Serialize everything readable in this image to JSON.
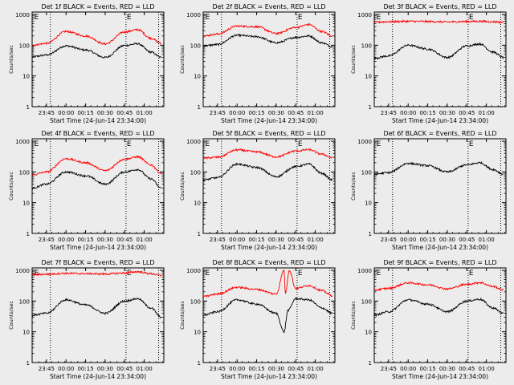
{
  "figure": {
    "xlabel": "Start Time (24-Jun-14 23:34:00)",
    "ylabel": "Counts/sec",
    "xtick_labels": [
      "23:45",
      "00:00",
      "00:15",
      "00:30",
      "00:45",
      "01:00"
    ],
    "ytick_labels": [
      "1",
      "10",
      "100",
      "1000"
    ],
    "colors": {
      "events": "#000000",
      "lld": "#ff0000"
    }
  },
  "chart_data": [
    {
      "type": "line",
      "title": "Det 1f BLACK = Events, RED = LLD",
      "xlim": [
        "23:34",
        "01:15"
      ],
      "ylim": [
        1,
        1200
      ],
      "yscale": "log",
      "vlines": [
        "23:48",
        "00:46",
        "01:11"
      ],
      "annotations": [
        {
          "text": "E",
          "x": "23:35"
        },
        {
          "text": "E",
          "x": "00:46"
        }
      ],
      "series": [
        {
          "color": "#000000",
          "x": [
            "23:34",
            "23:45",
            "00:00",
            "00:15",
            "00:30",
            "00:45",
            "00:55",
            "01:05",
            "01:13"
          ],
          "y": [
            42,
            48,
            95,
            70,
            40,
            98,
            112,
            60,
            40
          ]
        },
        {
          "color": "#ff0000",
          "x": [
            "23:34",
            "23:45",
            "00:00",
            "00:15",
            "00:30",
            "00:45",
            "00:55",
            "01:05",
            "01:13"
          ],
          "y": [
            100,
            115,
            280,
            200,
            110,
            270,
            320,
            170,
            115
          ]
        }
      ]
    },
    {
      "type": "line",
      "title": "Det 2f BLACK = Events, RED = LLD",
      "xlim": [
        "23:34",
        "01:15"
      ],
      "ylim": [
        1,
        1200
      ],
      "yscale": "log",
      "vlines": [
        "23:48",
        "00:46",
        "01:11"
      ],
      "annotations": [
        {
          "text": "E",
          "x": "23:35"
        },
        {
          "text": "E",
          "x": "00:46"
        }
      ],
      "series": [
        {
          "color": "#000000",
          "x": [
            "23:34",
            "23:45",
            "00:00",
            "00:15",
            "00:30",
            "00:45",
            "00:55",
            "01:05",
            "01:13"
          ],
          "y": [
            95,
            105,
            210,
            190,
            120,
            180,
            200,
            120,
            90
          ]
        },
        {
          "color": "#ff0000",
          "x": [
            "23:34",
            "23:45",
            "00:00",
            "00:15",
            "00:30",
            "00:45",
            "00:55",
            "01:05",
            "01:13"
          ],
          "y": [
            200,
            230,
            420,
            400,
            240,
            380,
            470,
            280,
            200
          ]
        }
      ]
    },
    {
      "type": "line",
      "title": "Det 3f BLACK = Events, RED = LLD",
      "xlim": [
        "23:34",
        "01:15"
      ],
      "ylim": [
        1,
        1200
      ],
      "yscale": "log",
      "vlines": [
        "23:48",
        "00:46",
        "01:11"
      ],
      "annotations": [
        {
          "text": "E",
          "x": "23:35"
        },
        {
          "text": "E",
          "x": "00:46"
        }
      ],
      "series": [
        {
          "color": "#000000",
          "x": [
            "23:34",
            "23:45",
            "00:00",
            "00:15",
            "00:30",
            "00:45",
            "00:55",
            "01:05",
            "01:13"
          ],
          "y": [
            38,
            45,
            100,
            75,
            40,
            95,
            110,
            60,
            40
          ]
        },
        {
          "color": "#ff0000",
          "x": [
            "23:34",
            "23:45",
            "00:00",
            "00:15",
            "00:30",
            "00:45",
            "00:55",
            "01:05",
            "01:13"
          ],
          "y": [
            560,
            580,
            600,
            590,
            570,
            590,
            600,
            580,
            560
          ]
        }
      ]
    },
    {
      "type": "line",
      "title": "Det 4f BLACK = Events, RED = LLD",
      "xlim": [
        "23:34",
        "01:15"
      ],
      "ylim": [
        1,
        1200
      ],
      "yscale": "log",
      "vlines": [
        "23:48",
        "00:46",
        "01:11"
      ],
      "annotations": [
        {
          "text": "E",
          "x": "23:35"
        },
        {
          "text": "E",
          "x": "00:46"
        }
      ],
      "series": [
        {
          "color": "#000000",
          "x": [
            "23:34",
            "23:45",
            "00:00",
            "00:15",
            "00:30",
            "00:45",
            "00:55",
            "01:05",
            "01:13"
          ],
          "y": [
            30,
            40,
            100,
            75,
            40,
            100,
            120,
            60,
            30
          ]
        },
        {
          "color": "#ff0000",
          "x": [
            "23:34",
            "23:45",
            "00:00",
            "00:15",
            "00:30",
            "00:45",
            "00:55",
            "01:05",
            "01:13"
          ],
          "y": [
            80,
            100,
            270,
            200,
            110,
            260,
            310,
            170,
            90
          ]
        }
      ]
    },
    {
      "type": "line",
      "title": "Det 5f BLACK = Events, RED = LLD",
      "xlim": [
        "23:34",
        "01:15"
      ],
      "ylim": [
        1,
        1200
      ],
      "yscale": "log",
      "vlines": [
        "23:48",
        "00:46",
        "01:11"
      ],
      "annotations": [
        {
          "text": "E",
          "x": "23:35"
        },
        {
          "text": "E",
          "x": "00:46"
        }
      ],
      "series": [
        {
          "color": "#000000",
          "x": [
            "23:34",
            "23:45",
            "00:00",
            "00:15",
            "00:30",
            "00:45",
            "00:55",
            "01:05",
            "01:13"
          ],
          "y": [
            55,
            65,
            180,
            140,
            70,
            150,
            180,
            90,
            55
          ]
        },
        {
          "color": "#ff0000",
          "x": [
            "23:34",
            "23:45",
            "00:00",
            "00:15",
            "00:30",
            "00:45",
            "00:55",
            "01:05",
            "01:13"
          ],
          "y": [
            280,
            300,
            520,
            450,
            310,
            480,
            530,
            380,
            290
          ]
        }
      ]
    },
    {
      "type": "line",
      "title": "Det 6f BLACK = Events, RED = LLD",
      "xlim": [
        "23:34",
        "01:15"
      ],
      "ylim": [
        1,
        1200
      ],
      "yscale": "log",
      "vlines": [
        "23:48",
        "00:46",
        "01:11"
      ],
      "annotations": [
        {
          "text": "E",
          "x": "23:35"
        },
        {
          "text": "E",
          "x": "00:46"
        }
      ],
      "series": [
        {
          "color": "#000000",
          "x": [
            "23:34",
            "23:45",
            "00:00",
            "00:15",
            "00:30",
            "00:45",
            "00:55",
            "01:05",
            "01:13"
          ],
          "y": [
            85,
            95,
            190,
            160,
            100,
            170,
            200,
            120,
            85
          ]
        }
      ]
    },
    {
      "type": "line",
      "title": "Det 7f BLACK = Events, RED = LLD",
      "xlim": [
        "23:34",
        "01:15"
      ],
      "ylim": [
        1,
        1200
      ],
      "yscale": "log",
      "vlines": [
        "23:48",
        "00:46",
        "01:11"
      ],
      "annotations": [
        {
          "text": "E",
          "x": "23:35"
        },
        {
          "text": "E",
          "x": "00:46"
        }
      ],
      "series": [
        {
          "color": "#000000",
          "x": [
            "23:34",
            "23:45",
            "00:00",
            "00:15",
            "00:30",
            "00:45",
            "00:55",
            "01:05",
            "01:13"
          ],
          "y": [
            35,
            40,
            110,
            75,
            40,
            100,
            120,
            60,
            30
          ]
        },
        {
          "color": "#ff0000",
          "x": [
            "23:34",
            "23:45",
            "00:00",
            "00:15",
            "00:30",
            "00:45",
            "00:55",
            "01:05",
            "01:13"
          ],
          "y": [
            720,
            750,
            800,
            780,
            760,
            820,
            900,
            780,
            680
          ]
        }
      ]
    },
    {
      "type": "line",
      "title": "Det 8f BLACK = Events, RED = LLD",
      "xlim": [
        "23:34",
        "01:15"
      ],
      "ylim": [
        1,
        1200
      ],
      "yscale": "log",
      "vlines": [
        "23:48",
        "00:46",
        "01:11"
      ],
      "annotations": [
        {
          "text": "E",
          "x": "23:35"
        },
        {
          "text": "E",
          "x": "00:46"
        }
      ],
      "series": [
        {
          "color": "#000000",
          "x": [
            "23:34",
            "23:45",
            "00:00",
            "00:15",
            "00:30",
            "00:36",
            "00:39",
            "00:45",
            "00:55",
            "01:05",
            "01:13"
          ],
          "y": [
            35,
            45,
            110,
            80,
            40,
            10,
            50,
            120,
            110,
            60,
            40
          ]
        },
        {
          "color": "#ff0000",
          "x": [
            "23:34",
            "23:45",
            "00:00",
            "00:15",
            "00:30",
            "00:36",
            "00:37",
            "00:40",
            "00:45",
            "00:55",
            "01:05",
            "01:13"
          ],
          "y": [
            140,
            170,
            280,
            240,
            170,
            1000,
            180,
            1000,
            260,
            320,
            220,
            150
          ]
        }
      ]
    },
    {
      "type": "line",
      "title": "Det 9f BLACK = Events, RED = LLD",
      "xlim": [
        "23:34",
        "01:15"
      ],
      "ylim": [
        1,
        1200
      ],
      "yscale": "log",
      "vlines": [
        "23:48",
        "00:46",
        "01:11"
      ],
      "annotations": [
        {
          "text": "E",
          "x": "23:35"
        },
        {
          "text": "E",
          "x": "00:46"
        }
      ],
      "series": [
        {
          "color": "#000000",
          "x": [
            "23:34",
            "23:45",
            "00:00",
            "00:15",
            "00:30",
            "00:45",
            "00:55",
            "01:05",
            "01:13"
          ],
          "y": [
            35,
            45,
            110,
            80,
            45,
            100,
            115,
            60,
            40
          ]
        },
        {
          "color": "#ff0000",
          "x": [
            "23:34",
            "23:45",
            "00:00",
            "00:15",
            "00:30",
            "00:45",
            "00:55",
            "01:05",
            "01:13"
          ],
          "y": [
            230,
            260,
            390,
            340,
            250,
            350,
            400,
            300,
            230
          ]
        }
      ]
    }
  ]
}
